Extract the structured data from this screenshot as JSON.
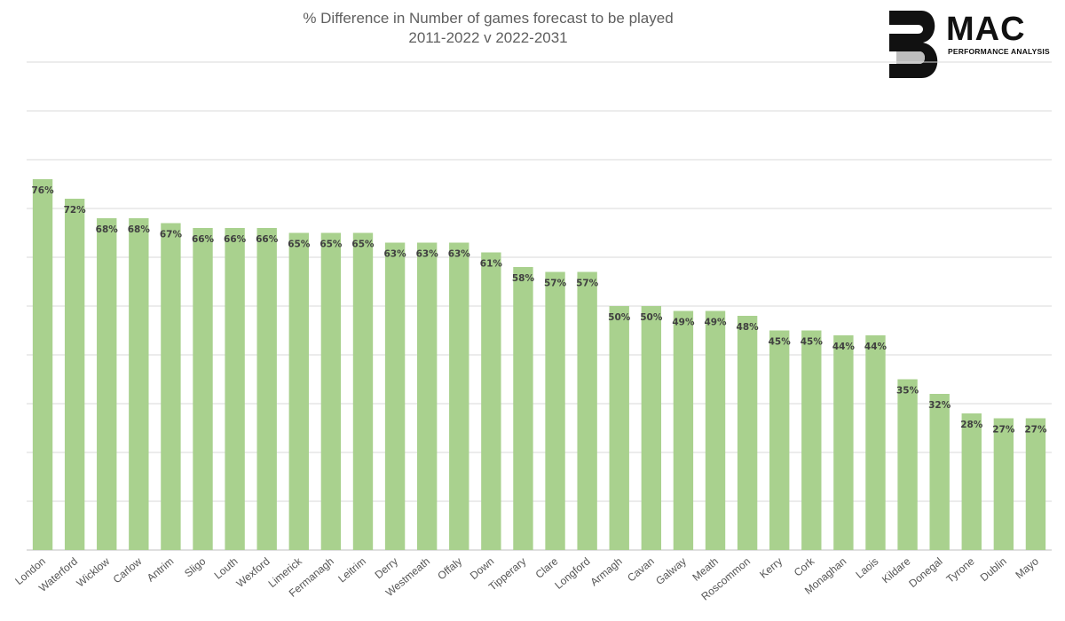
{
  "chart_data": {
    "type": "bar",
    "title": "% Difference in Number of games  forecast to be played",
    "subtitle": "2011-2022  v 2022-2031",
    "xlabel": "",
    "ylabel": "",
    "ylim": [
      0,
      100
    ],
    "grid": true,
    "legend": "none",
    "bar_color": "#a9d18e",
    "categories": [
      "London",
      "Waterford",
      "Wicklow",
      "Carlow",
      "Antrim",
      "Sligo",
      "Louth",
      "Wexford",
      "Limerick",
      "Fermanagh",
      "Leitrim",
      "Derry",
      "Westmeath",
      "Offaly",
      "Down",
      "Tipperary",
      "Clare",
      "Longford",
      "Armagh",
      "Cavan",
      "Galway",
      "Meath",
      "Roscommon",
      "Kerry",
      "Cork",
      "Monaghan",
      "Laois",
      "Kildare",
      "Donegal",
      "Tyrone",
      "Dublin",
      "Mayo"
    ],
    "values": [
      76,
      72,
      68,
      68,
      67,
      66,
      66,
      66,
      65,
      65,
      65,
      63,
      63,
      63,
      61,
      58,
      57,
      57,
      50,
      50,
      49,
      49,
      48,
      45,
      45,
      44,
      44,
      35,
      32,
      28,
      27,
      27
    ],
    "data_labels": [
      "76%",
      "72%",
      "68%",
      "68%",
      "67%",
      "66%",
      "66%",
      "66%",
      "65%",
      "65%",
      "65%",
      "63%",
      "63%",
      "63%",
      "61%",
      "58%",
      "57%",
      "57%",
      "50%",
      "50%",
      "49%",
      "49%",
      "48%",
      "45%",
      "45%",
      "44%",
      "44%",
      "35%",
      "32%",
      "28%",
      "27%",
      "27%"
    ]
  },
  "logo": {
    "word": "MAC",
    "tagline": "PERFORMANCE ANALYSIS"
  }
}
